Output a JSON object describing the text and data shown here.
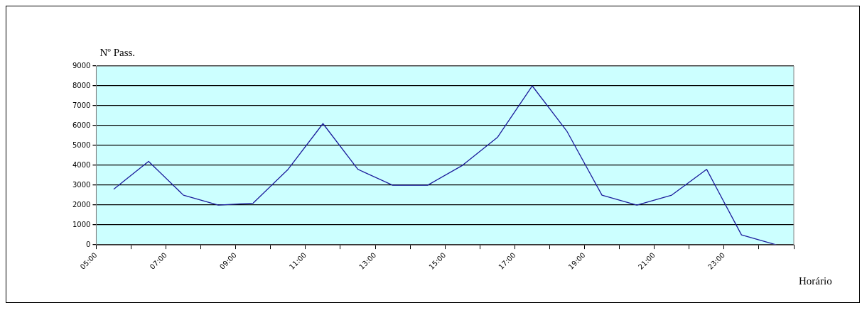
{
  "chart_data": {
    "type": "line",
    "xlabel": "Horário",
    "ylabel": "Nº Pass.",
    "x": [
      5.5,
      6.5,
      7.5,
      8.5,
      9.5,
      10.5,
      11.5,
      12.5,
      13.5,
      14.5,
      15.5,
      16.5,
      17.5,
      18.5,
      19.5,
      20.5,
      21.5,
      22.5,
      23.5,
      24.5
    ],
    "series": [
      {
        "color": "#1c1c9c",
        "values": [
          2800,
          4200,
          2500,
          2000,
          2100,
          3800,
          6100,
          3800,
          3000,
          3000,
          4000,
          5400,
          8000,
          5700,
          2500,
          2000,
          2500,
          3800,
          500,
          0
        ]
      }
    ],
    "xlim": [
      5,
      25
    ],
    "xticks": [
      {
        "value": 5,
        "label": "05:00"
      },
      {
        "value": 6,
        "label": null
      },
      {
        "value": 7,
        "label": "07:00"
      },
      {
        "value": 8,
        "label": null
      },
      {
        "value": 9,
        "label": "09:00"
      },
      {
        "value": 10,
        "label": null
      },
      {
        "value": 11,
        "label": "11:00"
      },
      {
        "value": 12,
        "label": null
      },
      {
        "value": 13,
        "label": "13:00"
      },
      {
        "value": 14,
        "label": null
      },
      {
        "value": 15,
        "label": "15:00"
      },
      {
        "value": 16,
        "label": null
      },
      {
        "value": 17,
        "label": "17:00"
      },
      {
        "value": 18,
        "label": null
      },
      {
        "value": 19,
        "label": "19:00"
      },
      {
        "value": 20,
        "label": null
      },
      {
        "value": 21,
        "label": "21:00"
      },
      {
        "value": 22,
        "label": null
      },
      {
        "value": 23,
        "label": "23:00"
      },
      {
        "value": 24,
        "label": null
      },
      {
        "value": 25,
        "label": null
      }
    ],
    "ylim": [
      0,
      9000
    ],
    "yticks": [
      0,
      1000,
      2000,
      3000,
      4000,
      5000,
      6000,
      7000,
      8000,
      9000
    ],
    "grid": "y",
    "legend": false,
    "marker": "none",
    "line_style": "solid"
  }
}
